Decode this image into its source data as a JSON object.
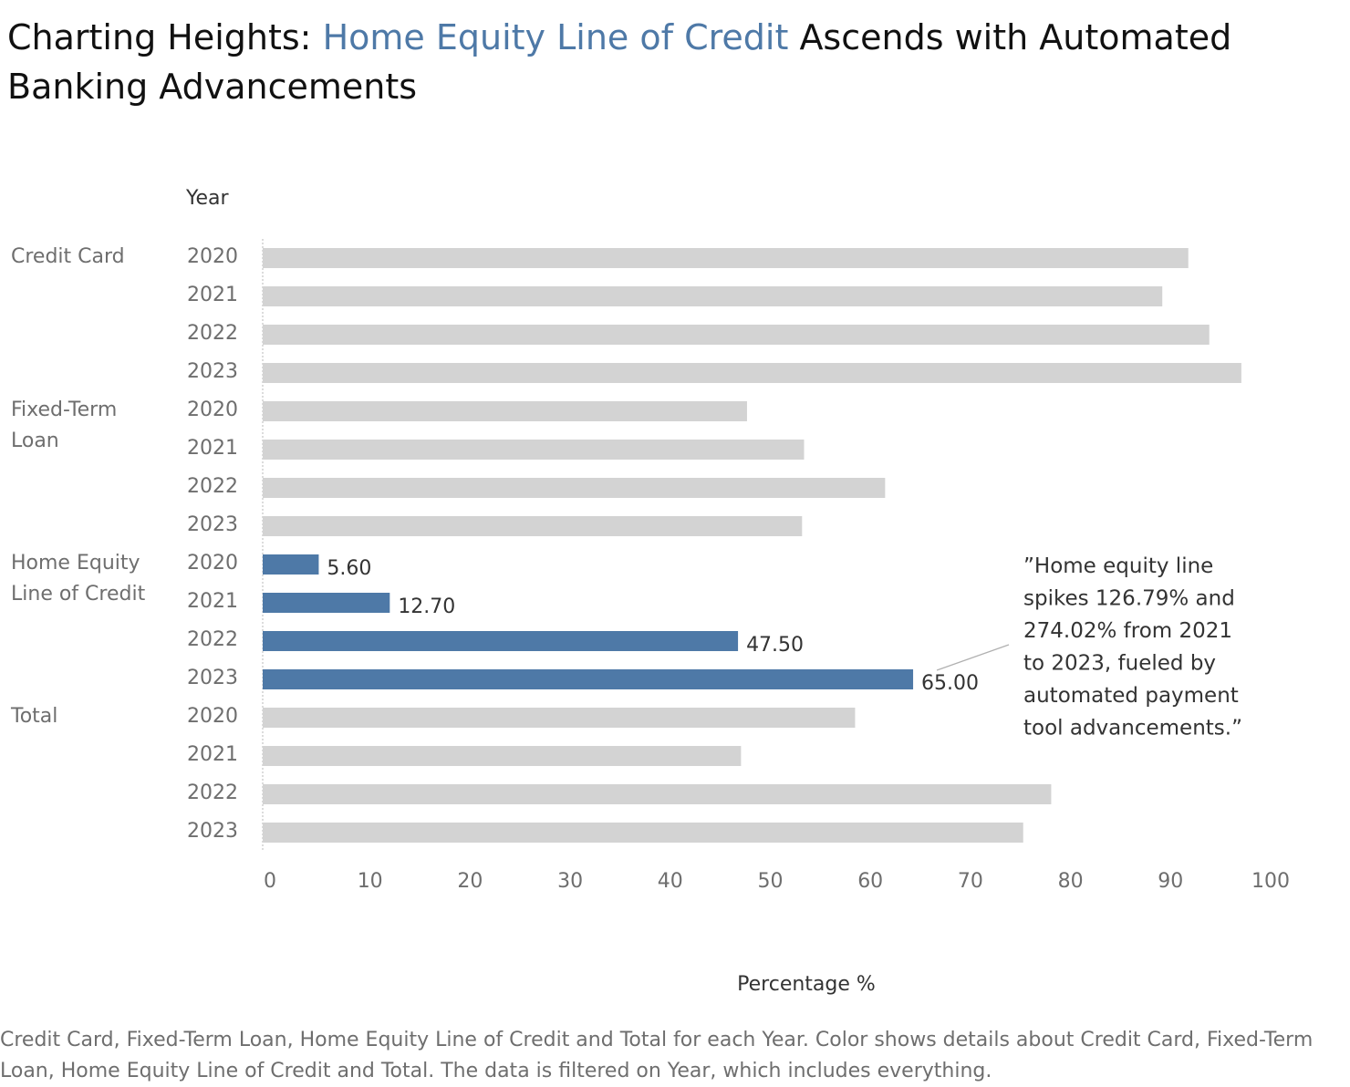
{
  "title": {
    "part1": "Charting Heights: ",
    "highlight": "Home Equity Line of Credit",
    "part2": " Ascends with Automated Banking Advancements"
  },
  "colors": {
    "highlight": "#4e79a7",
    "base": "#d3d3d3"
  },
  "chart_data": {
    "type": "bar",
    "orientation": "horizontal",
    "row_header": "Year",
    "xlabel": "Percentage %",
    "xlim": [
      0,
      100
    ],
    "xticks": [
      "0",
      "10",
      "20",
      "30",
      "40",
      "50",
      "60",
      "70",
      "80",
      "90",
      "100"
    ],
    "grid": false,
    "groups": [
      {
        "label": "Credit Card",
        "highlight": false,
        "rows": [
          {
            "year": "2020",
            "value": 92.5
          },
          {
            "year": "2021",
            "value": 89.9
          },
          {
            "year": "2022",
            "value": 94.6
          },
          {
            "year": "2023",
            "value": 97.8
          }
        ]
      },
      {
        "label": "Fixed-Term Loan",
        "highlight": false,
        "rows": [
          {
            "year": "2020",
            "value": 48.4
          },
          {
            "year": "2021",
            "value": 54.1
          },
          {
            "year": "2022",
            "value": 62.2
          },
          {
            "year": "2023",
            "value": 53.9
          }
        ]
      },
      {
        "label": "Home Equity Line of Credit",
        "highlight": true,
        "rows": [
          {
            "year": "2020",
            "value": 5.6,
            "label": "5.60"
          },
          {
            "year": "2021",
            "value": 12.7,
            "label": "12.70"
          },
          {
            "year": "2022",
            "value": 47.5,
            "label": "47.50"
          },
          {
            "year": "2023",
            "value": 65.0,
            "label": "65.00"
          }
        ]
      },
      {
        "label": "Total",
        "highlight": false,
        "rows": [
          {
            "year": "2020",
            "value": 59.2
          },
          {
            "year": "2021",
            "value": 47.8
          },
          {
            "year": "2022",
            "value": 78.8
          },
          {
            "year": "2023",
            "value": 76.0
          }
        ]
      }
    ],
    "annotation": {
      "text": "\"Home equity line spikes 126.79% and 274.02% from 2021 to 2023, fueled by automated payment tool advancements.\"",
      "lines": [
        "”Home equity line",
        "spikes 126.79% and",
        "274.02% from 2021",
        "to 2023, fueled by",
        "automated payment",
        "tool advancements.”"
      ],
      "target": {
        "group": "Home Equity Line of Credit",
        "year": "2023"
      }
    }
  },
  "caption": "Credit Card, Fixed-Term Loan, Home Equity Line of Credit and Total for each Year.  Color shows details about Credit Card, Fixed-Term Loan, Home Equity Line of Credit and Total. The data is filtered on Year, which includes everything."
}
